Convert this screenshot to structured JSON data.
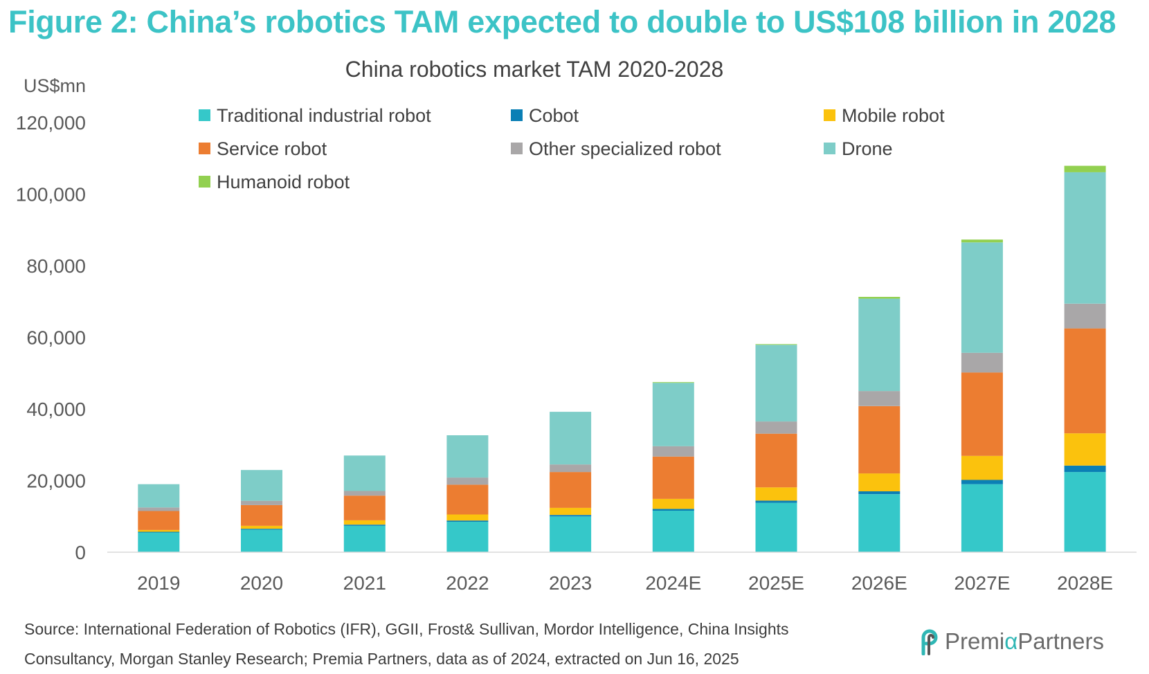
{
  "figure_title": "Figure 2: China’s robotics TAM expected to double to US$108 billion in 2028",
  "source": {
    "line1": "Source: International Federation of Robotics (IFR), GGII, Frost& Sullivan, Mordor Intelligence, China Insights",
    "line2": "Consultancy, Morgan Stanley Research; Premia Partners, data as of 2024, extracted on Jun 16, 2025"
  },
  "logo": {
    "icon": "premia-p-logo-icon",
    "pre": "Premi",
    "alpha": "α",
    "post": "Partners"
  },
  "chart_data": {
    "type": "bar",
    "stacked": true,
    "title": "China robotics market TAM 2020-2028",
    "ylabel": "US$mn",
    "xlabel": "",
    "ylim": [
      0,
      120000
    ],
    "yticks": [
      0,
      20000,
      40000,
      60000,
      80000,
      100000,
      120000
    ],
    "ytick_labels": [
      "0",
      "20,000",
      "40,000",
      "60,000",
      "80,000",
      "100,000",
      "120,000"
    ],
    "grid": false,
    "legend_position": "top",
    "categories": [
      "2019",
      "2020",
      "2021",
      "2022",
      "2023",
      "2024E",
      "2025E",
      "2026E",
      "2027E",
      "2028E"
    ],
    "series": [
      {
        "name": "Traditional industrial robot",
        "color": "#35c8c9",
        "values": [
          5500,
          6300,
          7400,
          8500,
          10000,
          11600,
          13800,
          16200,
          19000,
          22400
        ]
      },
      {
        "name": "Cobot",
        "color": "#0a7fb5",
        "values": [
          200,
          250,
          300,
          350,
          400,
          500,
          600,
          800,
          1200,
          1800
        ]
      },
      {
        "name": "Mobile robot",
        "color": "#fbc20d",
        "values": [
          500,
          800,
          1200,
          1700,
          2000,
          2800,
          3700,
          5000,
          6700,
          9000
        ]
      },
      {
        "name": "Service robot",
        "color": "#ec7d31",
        "values": [
          5300,
          5800,
          6900,
          8300,
          10000,
          11800,
          15000,
          18800,
          23300,
          29300
        ]
      },
      {
        "name": "Other specialized robot",
        "color": "#a9a7a8",
        "values": [
          1000,
          1200,
          1300,
          2000,
          2100,
          2900,
          3400,
          4200,
          5500,
          6900
        ]
      },
      {
        "name": "Drone",
        "color": "#7ecdc8",
        "values": [
          6500,
          8600,
          9900,
          11800,
          14700,
          17700,
          21400,
          25800,
          30800,
          36700
        ]
      },
      {
        "name": "Humanoid robot",
        "color": "#92d050",
        "values": [
          0,
          0,
          0,
          0,
          0,
          200,
          200,
          500,
          800,
          1800
        ]
      }
    ]
  }
}
